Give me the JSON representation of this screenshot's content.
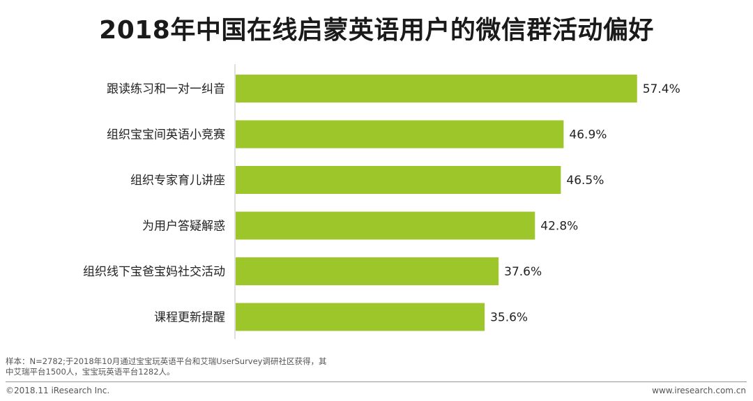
{
  "title": "2018年中国在线启蒙英语用户的微信群活动偏好",
  "chart_data": {
    "type": "bar",
    "orientation": "horizontal",
    "categories": [
      "跟读练习和一对一纠音",
      "组织宝宝间英语小竞赛",
      "组织专家育儿讲座",
      "为用户答疑解惑",
      "组织线下宝爸宝妈社交活动",
      "课程更新提醒"
    ],
    "values": [
      57.4,
      46.9,
      46.5,
      42.8,
      37.6,
      35.6
    ],
    "value_labels": [
      "57.4%",
      "46.9%",
      "46.5%",
      "42.8%",
      "37.6%",
      "35.6%"
    ],
    "unit": "%",
    "xlim": [
      0,
      70
    ],
    "bar_color": "#9dc62a",
    "grid": false,
    "legend": "none"
  },
  "note": {
    "line1": "样本：N=2782;于2018年10月通过宝宝玩英语平台和艾瑞UserSurvey调研社区获得，其",
    "line2": "中艾瑞平台1500人，宝宝玩英语平台1282人。"
  },
  "footer": {
    "copyright": "©2018.11 iResearch Inc.",
    "website": "www.iresearch.com.cn"
  }
}
